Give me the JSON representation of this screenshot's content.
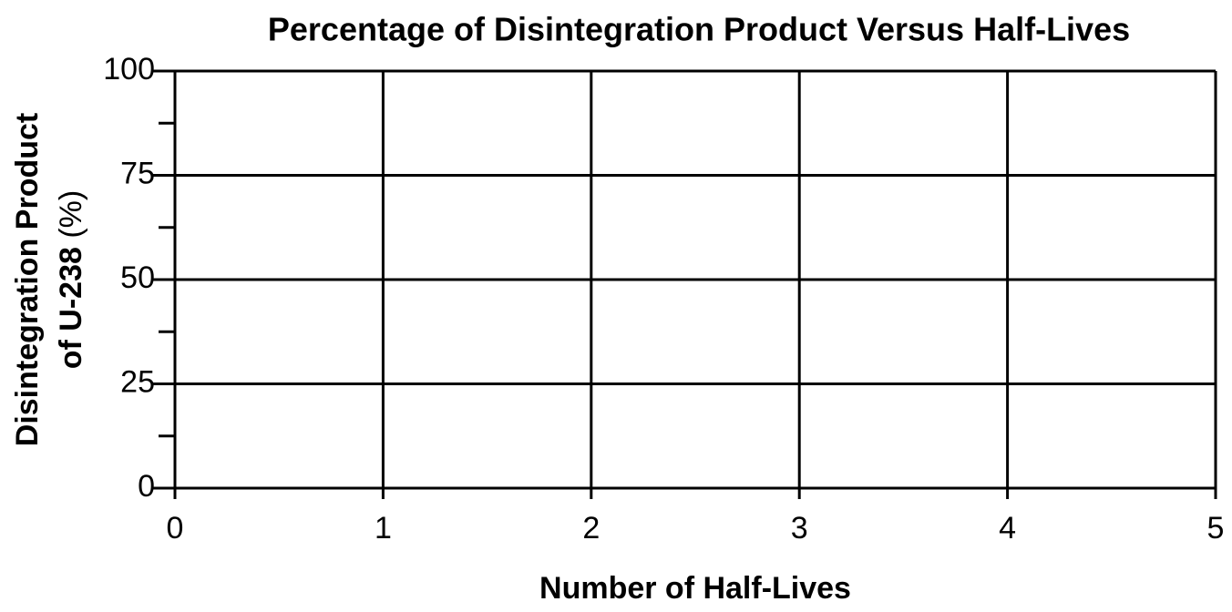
{
  "chart_data": {
    "type": "line",
    "title": "Percentage of Disintegration Product Versus Half-Lives",
    "xlabel": "Number of Half-Lives",
    "ylabel": {
      "line1": "Disintegration Product",
      "line2": "of U-238",
      "unit": "(%)"
    },
    "xlim": [
      0,
      5
    ],
    "xticks": [
      0,
      1,
      2,
      3,
      4,
      5
    ],
    "ylim": [
      0,
      100
    ],
    "yticks": [
      0,
      25,
      50,
      75,
      100
    ],
    "y_minor_ticks": [
      12.5,
      37.5,
      62.5,
      87.5
    ],
    "grid": true,
    "grid_color": "#000000"
  }
}
